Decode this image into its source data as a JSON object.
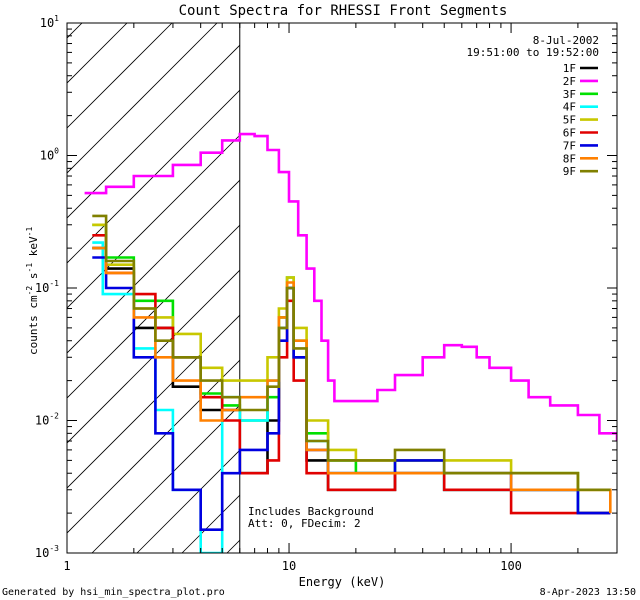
{
  "chart_data": {
    "type": "line",
    "title": "Count Spectra for RHESSI Front Segments",
    "xlabel": "Energy (keV)",
    "ylabel_main": "counts cm",
    "ylabel_sup1": "-2",
    "ylabel_s": " s",
    "ylabel_sup2": "-1",
    "ylabel_kev": " keV",
    "ylabel_sup3": "-1",
    "x_scale": "log",
    "y_scale": "log",
    "xlim": [
      1,
      300
    ],
    "ylim": [
      0.001,
      10
    ],
    "x_tick_labels": [
      {
        "value": 1,
        "label": "1"
      },
      {
        "value": 10,
        "label": "10"
      },
      {
        "value": 100,
        "label": "100"
      }
    ],
    "y_tick_labels": [
      {
        "value": 10,
        "base": "10",
        "exp": "1"
      },
      {
        "value": 1,
        "base": "10",
        "exp": "0"
      },
      {
        "value": 0.1,
        "base": "10",
        "exp": "-1"
      },
      {
        "value": 0.01,
        "base": "10",
        "exp": "-2"
      },
      {
        "value": 0.001,
        "base": "10",
        "exp": "-3"
      }
    ],
    "hatch_region_kev": [
      1,
      6
    ],
    "legend_date": "8-Jul-2002",
    "legend_time": "19:51:00 to 19:52:00",
    "annotation_line1": "Includes Background",
    "annotation_line2": "Att: 0, FDecim: 2",
    "series": [
      {
        "name": "1F",
        "color": "#000000",
        "points": [
          [
            1.3,
            0.2
          ],
          [
            1.5,
            0.14
          ],
          [
            2,
            0.05
          ],
          [
            3,
            0.018
          ],
          [
            4,
            0.012
          ],
          [
            5,
            0.012
          ],
          [
            6,
            0.004
          ],
          [
            8,
            0.01
          ],
          [
            9,
            0.05
          ],
          [
            9.8,
            0.1
          ],
          [
            10.5,
            0.03
          ],
          [
            12,
            0.005
          ],
          [
            15,
            0.003
          ],
          [
            20,
            0.003
          ],
          [
            30,
            0.004
          ],
          [
            50,
            0.003
          ],
          [
            100,
            0.003
          ],
          [
            200,
            0.002
          ],
          [
            280,
            0.002
          ]
        ]
      },
      {
        "name": "2F",
        "color": "#ff00ff",
        "points": [
          [
            1.2,
            0.52
          ],
          [
            1.5,
            0.58
          ],
          [
            2,
            0.7
          ],
          [
            3,
            0.85
          ],
          [
            4,
            1.05
          ],
          [
            5,
            1.3
          ],
          [
            6,
            1.45
          ],
          [
            7,
            1.4
          ],
          [
            8,
            1.1
          ],
          [
            9,
            0.75
          ],
          [
            10,
            0.45
          ],
          [
            11,
            0.25
          ],
          [
            12,
            0.14
          ],
          [
            13,
            0.08
          ],
          [
            14,
            0.04
          ],
          [
            15,
            0.02
          ],
          [
            16,
            0.014
          ],
          [
            20,
            0.014
          ],
          [
            25,
            0.017
          ],
          [
            30,
            0.022
          ],
          [
            40,
            0.03
          ],
          [
            50,
            0.037
          ],
          [
            60,
            0.036
          ],
          [
            70,
            0.03
          ],
          [
            80,
            0.025
          ],
          [
            100,
            0.02
          ],
          [
            120,
            0.015
          ],
          [
            150,
            0.013
          ],
          [
            200,
            0.011
          ],
          [
            250,
            0.008
          ],
          [
            300,
            0.007
          ]
        ]
      },
      {
        "name": "3F",
        "color": "#00e000",
        "points": [
          [
            1.3,
            0.3
          ],
          [
            1.5,
            0.17
          ],
          [
            2,
            0.08
          ],
          [
            3,
            0.03
          ],
          [
            4,
            0.016
          ],
          [
            5,
            0.013
          ],
          [
            6,
            0.01
          ],
          [
            8,
            0.015
          ],
          [
            9,
            0.06
          ],
          [
            9.8,
            0.12
          ],
          [
            10.5,
            0.04
          ],
          [
            12,
            0.008
          ],
          [
            15,
            0.005
          ],
          [
            20,
            0.004
          ],
          [
            30,
            0.005
          ],
          [
            50,
            0.004
          ],
          [
            100,
            0.004
          ],
          [
            200,
            0.002
          ],
          [
            280,
            0.002
          ]
        ]
      },
      {
        "name": "4F",
        "color": "#00ffff",
        "points": [
          [
            1.3,
            0.22
          ],
          [
            1.45,
            0.09
          ],
          [
            2,
            0.035
          ],
          [
            2.5,
            0.012
          ],
          [
            3,
            0.003
          ],
          [
            4,
            0.001
          ],
          [
            5,
            0.015
          ],
          [
            6,
            0.01
          ],
          [
            8,
            0.02
          ],
          [
            9,
            0.05
          ],
          [
            9.8,
            0.1
          ],
          [
            10.5,
            0.03
          ],
          [
            12,
            0.007
          ],
          [
            15,
            0.004
          ],
          [
            20,
            0.004
          ],
          [
            30,
            0.004
          ],
          [
            50,
            0.003
          ],
          [
            100,
            0.003
          ],
          [
            200,
            0.002
          ],
          [
            280,
            0.002
          ]
        ]
      },
      {
        "name": "5F",
        "color": "#c8c800",
        "points": [
          [
            1.3,
            0.3
          ],
          [
            1.5,
            0.15
          ],
          [
            2,
            0.07
          ],
          [
            2.5,
            0.06
          ],
          [
            3,
            0.045
          ],
          [
            4,
            0.025
          ],
          [
            5,
            0.02
          ],
          [
            6,
            0.02
          ],
          [
            8,
            0.03
          ],
          [
            9,
            0.07
          ],
          [
            9.8,
            0.12
          ],
          [
            10.5,
            0.05
          ],
          [
            12,
            0.01
          ],
          [
            15,
            0.006
          ],
          [
            20,
            0.005
          ],
          [
            30,
            0.005
          ],
          [
            50,
            0.005
          ],
          [
            100,
            0.004
          ],
          [
            200,
            0.003
          ],
          [
            280,
            0.003
          ]
        ]
      },
      {
        "name": "6F",
        "color": "#e00000",
        "points": [
          [
            1.3,
            0.25
          ],
          [
            1.5,
            0.13
          ],
          [
            2,
            0.09
          ],
          [
            2.5,
            0.05
          ],
          [
            3,
            0.03
          ],
          [
            4,
            0.015
          ],
          [
            5,
            0.01
          ],
          [
            6,
            0.004
          ],
          [
            8,
            0.005
          ],
          [
            9,
            0.03
          ],
          [
            9.8,
            0.08
          ],
          [
            10.5,
            0.02
          ],
          [
            12,
            0.004
          ],
          [
            15,
            0.003
          ],
          [
            20,
            0.003
          ],
          [
            30,
            0.004
          ],
          [
            50,
            0.003
          ],
          [
            100,
            0.002
          ],
          [
            200,
            0.002
          ],
          [
            280,
            0.002
          ]
        ]
      },
      {
        "name": "7F",
        "color": "#0000e0",
        "points": [
          [
            1.3,
            0.17
          ],
          [
            1.5,
            0.1
          ],
          [
            2,
            0.03
          ],
          [
            2.5,
            0.008
          ],
          [
            3,
            0.003
          ],
          [
            4,
            0.0015
          ],
          [
            5,
            0.004
          ],
          [
            6,
            0.006
          ],
          [
            8,
            0.008
          ],
          [
            9,
            0.04
          ],
          [
            9.8,
            0.1
          ],
          [
            10.5,
            0.03
          ],
          [
            12,
            0.006
          ],
          [
            15,
            0.004
          ],
          [
            20,
            0.004
          ],
          [
            30,
            0.005
          ],
          [
            50,
            0.004
          ],
          [
            100,
            0.003
          ],
          [
            200,
            0.002
          ],
          [
            280,
            0.002
          ]
        ]
      },
      {
        "name": "8F",
        "color": "#ff8000",
        "points": [
          [
            1.3,
            0.2
          ],
          [
            1.5,
            0.13
          ],
          [
            2,
            0.06
          ],
          [
            2.5,
            0.03
          ],
          [
            3,
            0.02
          ],
          [
            4,
            0.01
          ],
          [
            5,
            0.012
          ],
          [
            6,
            0.015
          ],
          [
            8,
            0.02
          ],
          [
            9,
            0.06
          ],
          [
            9.8,
            0.11
          ],
          [
            10.5,
            0.04
          ],
          [
            12,
            0.006
          ],
          [
            15,
            0.004
          ],
          [
            20,
            0.004
          ],
          [
            30,
            0.004
          ],
          [
            50,
            0.004
          ],
          [
            100,
            0.003
          ],
          [
            200,
            0.003
          ],
          [
            280,
            0.002
          ]
        ]
      },
      {
        "name": "9F",
        "color": "#808000",
        "points": [
          [
            1.3,
            0.35
          ],
          [
            1.5,
            0.16
          ],
          [
            2,
            0.07
          ],
          [
            2.5,
            0.04
          ],
          [
            3,
            0.03
          ],
          [
            4,
            0.02
          ],
          [
            5,
            0.015
          ],
          [
            6,
            0.012
          ],
          [
            8,
            0.018
          ],
          [
            9,
            0.05
          ],
          [
            9.8,
            0.1
          ],
          [
            10.5,
            0.035
          ],
          [
            12,
            0.007
          ],
          [
            15,
            0.005
          ],
          [
            20,
            0.005
          ],
          [
            30,
            0.006
          ],
          [
            50,
            0.004
          ],
          [
            100,
            0.004
          ],
          [
            200,
            0.003
          ],
          [
            280,
            0.003
          ]
        ]
      }
    ]
  },
  "footer": {
    "left": "Generated by hsi_min_spectra_plot.pro",
    "right": "8-Apr-2023 13:50"
  }
}
